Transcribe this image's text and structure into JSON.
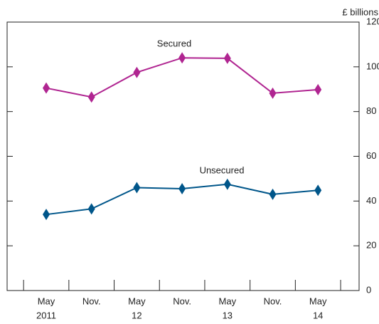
{
  "chart_data": {
    "type": "line",
    "y_axis_label": "£ billions",
    "categories": [
      "May",
      "Nov.",
      "May",
      "Nov.",
      "May",
      "Nov.",
      "May"
    ],
    "category_years": [
      "2011",
      null,
      "12",
      null,
      "13",
      null,
      "14"
    ],
    "series": [
      {
        "name": "Secured",
        "color": "#b02591",
        "values": [
          90.5,
          86.5,
          97.5,
          104,
          103.8,
          88.2,
          89.8
        ]
      },
      {
        "name": "Unsecured",
        "color": "#00568a",
        "values": [
          34,
          36.5,
          46,
          45.5,
          47.5,
          43,
          44.8
        ]
      }
    ],
    "ylim": [
      0,
      120
    ],
    "yticks": [
      0,
      20,
      40,
      60,
      80,
      100,
      120
    ],
    "y_axis_side": "right",
    "grid": false
  }
}
